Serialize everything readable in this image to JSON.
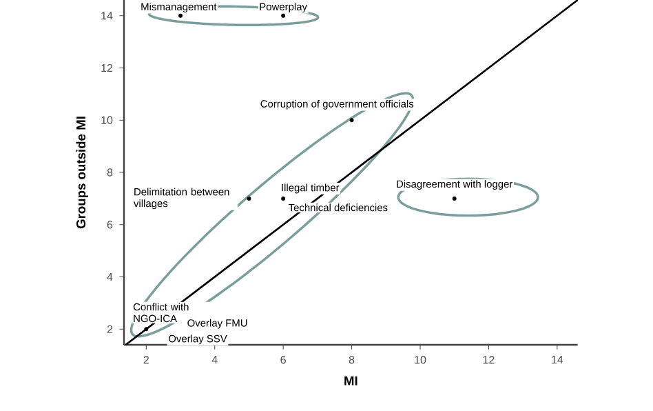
{
  "chart_data": {
    "type": "scatter",
    "xlabel": "MI",
    "ylabel": "Groups outside MI",
    "xlim": [
      1.35,
      14.6
    ],
    "ylim": [
      1.4,
      14.6
    ],
    "xticks": [
      2,
      4,
      6,
      8,
      10,
      12,
      14
    ],
    "yticks": [
      2,
      4,
      6,
      8,
      10,
      12,
      14
    ],
    "series": [
      {
        "marker": "circle",
        "color": "#000000",
        "x": [
          3,
          6,
          8,
          5,
          6,
          11,
          2
        ],
        "values": [
          14,
          14,
          10,
          7,
          7,
          7,
          2
        ]
      },
      {
        "type": "line",
        "marker": "none",
        "color": "#000000",
        "x": [
          1.4,
          14.6
        ],
        "values": [
          1.4,
          14.6
        ]
      }
    ],
    "annotations": [
      {
        "text": "Mismanagement",
        "x": 3,
        "y": 14
      },
      {
        "text": "Powerplay",
        "x": 6,
        "y": 14
      },
      {
        "text": "Corruption of government officials",
        "x": 8,
        "y": 10
      },
      {
        "text": "Delimitation between villages",
        "x": 5,
        "y": 7
      },
      {
        "text": "Illegal timber",
        "x": 6,
        "y": 7
      },
      {
        "text": "Technical deficiencies",
        "x": 6,
        "y": 7
      },
      {
        "text": "Disagreement with logger",
        "x": 11,
        "y": 7
      },
      {
        "text": "Conflict with NGO-ICA",
        "x": 2,
        "y": 2
      },
      "Overlay FMU",
      "Overlay SSV"
    ]
  }
}
